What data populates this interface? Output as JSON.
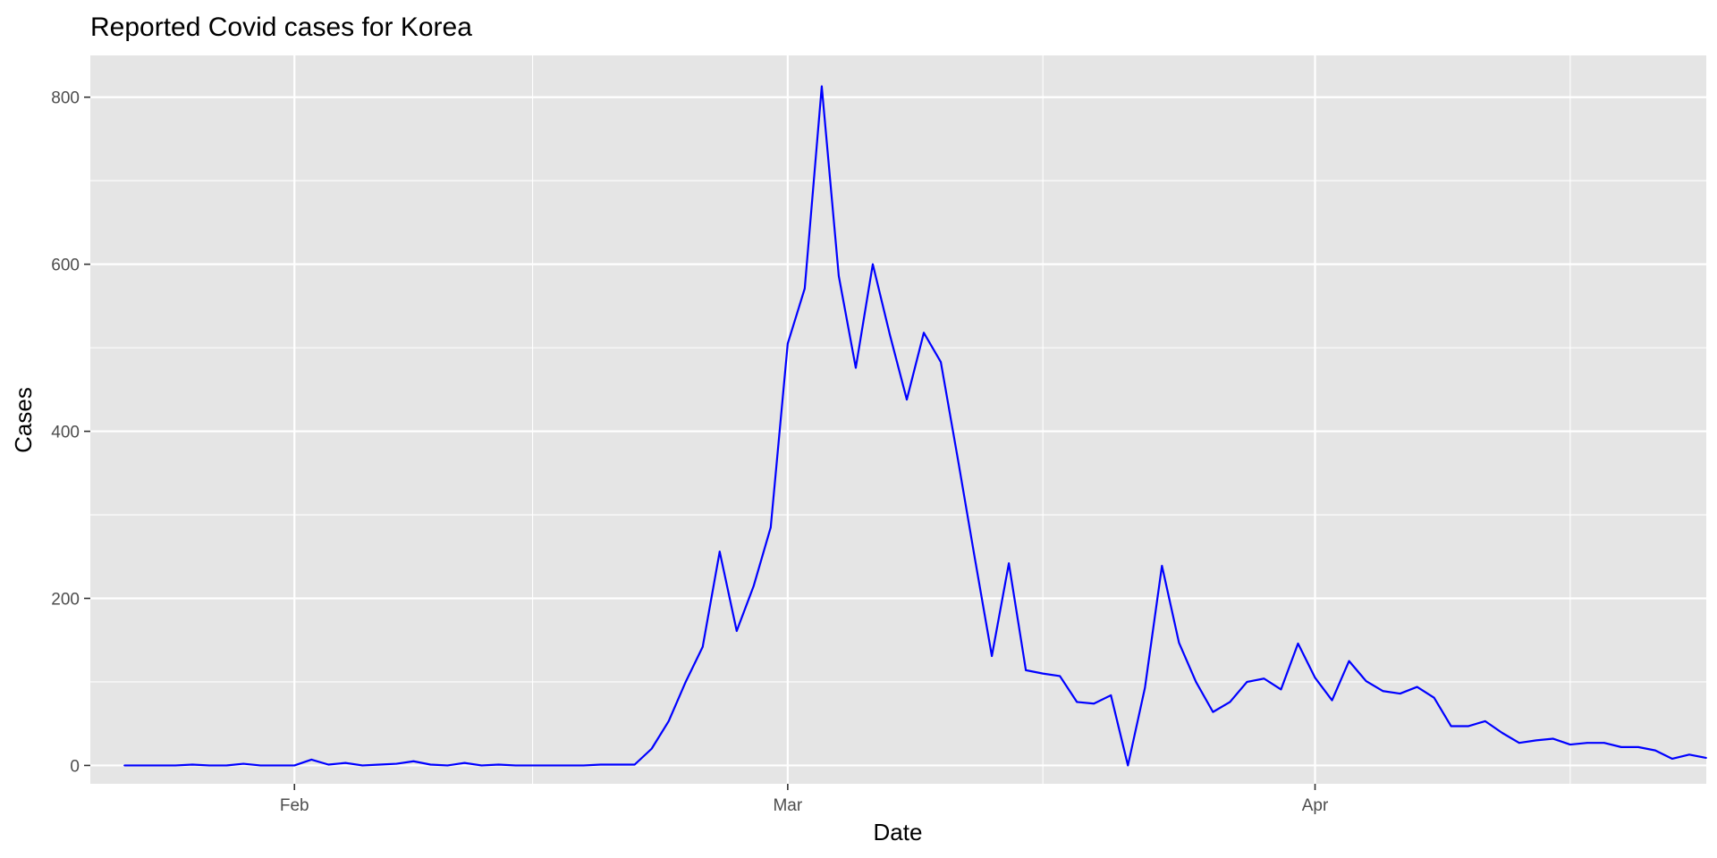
{
  "chart_data": {
    "type": "line",
    "title": "Reported Covid cases for Korea",
    "xlabel": "Date",
    "ylabel": "Cases",
    "x_start_date": "2020-01-22",
    "x_axis": {
      "range": [
        "2020-01-20",
        "2020-04-24"
      ],
      "major_ticks": [
        {
          "date": "2020-02-01",
          "label": "Feb"
        },
        {
          "date": "2020-03-01",
          "label": "Mar"
        },
        {
          "date": "2020-04-01",
          "label": "Apr"
        }
      ],
      "minor_ticks": [
        "2020-01-16",
        "2020-02-15",
        "2020-03-16",
        "2020-04-16"
      ]
    },
    "y_axis": {
      "range": [
        -22,
        850
      ],
      "major_ticks": [
        0,
        200,
        400,
        600,
        800
      ],
      "minor_ticks": [
        100,
        300,
        500,
        700
      ]
    },
    "grid": true,
    "panel_background": "#e5e5e5",
    "series": [
      {
        "color": "#0000ff",
        "values": [
          0,
          0,
          0,
          0,
          1,
          0,
          0,
          2,
          0,
          0,
          0,
          7,
          1,
          3,
          0,
          1,
          2,
          5,
          1,
          0,
          3,
          0,
          1,
          0,
          0,
          0,
          0,
          0,
          1,
          1,
          1,
          20,
          53,
          100,
          142,
          256,
          161,
          215,
          285,
          505,
          571,
          813,
          586,
          476,
          600,
          516,
          438,
          518,
          483,
          367,
          248,
          131,
          242,
          114,
          110,
          107,
          76,
          74,
          84,
          0,
          93,
          239,
          147,
          100,
          64,
          76,
          100,
          104,
          91,
          146,
          105,
          78,
          125,
          101,
          89,
          86,
          94,
          81,
          47,
          47,
          53,
          39,
          27,
          30,
          32,
          25,
          27,
          27,
          22,
          22,
          18,
          8,
          13,
          9
        ]
      }
    ]
  }
}
